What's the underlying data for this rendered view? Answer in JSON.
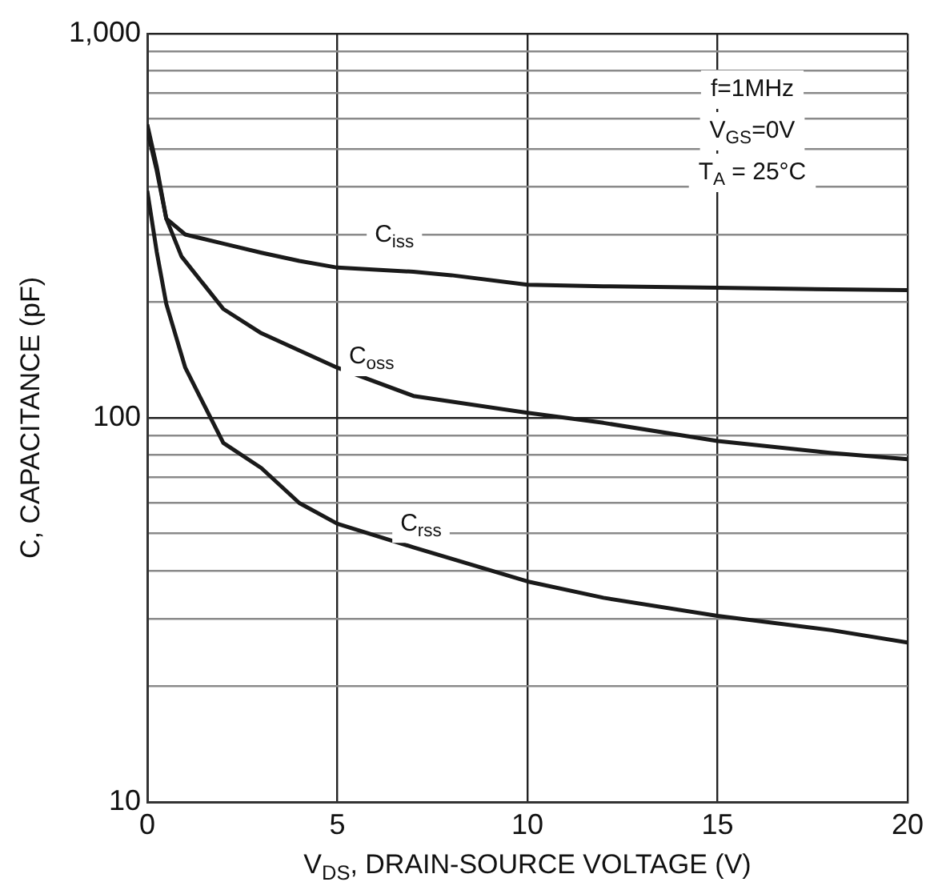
{
  "chart_data": {
    "type": "line",
    "xlabel": "V$_{DS}$, DRAIN-SOURCE VOLTAGE (V)",
    "ylabel": "C, CAPACITANCE (pF)",
    "log": "y",
    "grid": true,
    "xlim": [
      0,
      20
    ],
    "xticks": [
      0,
      5,
      10,
      15,
      20
    ],
    "ylim": [
      10,
      1000
    ],
    "yticks": [
      10,
      {
        "value": 20,
        "label": null
      },
      {
        "value": 30,
        "label": null
      },
      {
        "value": 40,
        "label": null
      },
      {
        "value": 50,
        "label": null
      },
      {
        "value": 60,
        "label": null
      },
      {
        "value": 70,
        "label": null
      },
      {
        "value": 80,
        "label": null
      },
      {
        "value": 90,
        "label": null
      },
      100,
      {
        "value": 200,
        "label": null
      },
      {
        "value": 300,
        "label": null
      },
      {
        "value": 400,
        "label": null
      },
      {
        "value": 500,
        "label": null
      },
      {
        "value": 600,
        "label": null
      },
      {
        "value": 700,
        "label": null
      },
      {
        "value": 800,
        "label": null
      },
      {
        "value": 900,
        "label": null
      },
      {
        "value": 1000,
        "label": "1,000"
      }
    ],
    "series": [
      {
        "color": "#1a1a1a",
        "x": [
          0,
          0.25,
          0.5,
          1,
          2,
          3,
          4,
          5,
          7,
          8,
          10,
          12,
          15,
          18,
          20
        ],
        "values": [
          580,
          450,
          330,
          300,
          284,
          269,
          256,
          246,
          240,
          235,
          222,
          220,
          218,
          216,
          215
        ]
      },
      {
        "color": "#1a1a1a",
        "x": [
          0,
          0.25,
          0.5,
          0.9,
          2,
          3,
          5,
          7,
          10,
          12,
          15,
          18,
          20
        ],
        "values": [
          560,
          440,
          330,
          263,
          192,
          166,
          135,
          114,
          103,
          97,
          87,
          81,
          78
        ]
      },
      {
        "color": "#1a1a1a",
        "x": [
          0,
          0.25,
          0.5,
          1,
          2,
          3,
          4,
          5,
          7,
          10,
          12,
          15,
          18,
          20
        ],
        "values": [
          390,
          270,
          198,
          135,
          86,
          74,
          60,
          53,
          46,
          37.5,
          34,
          30.5,
          28,
          26
        ]
      }
    ],
    "annotations": [
      {
        "text": "C$_{iss}$",
        "x": 6.5,
        "y": 299
      },
      {
        "text": "C$_{oss}$",
        "x": 5.9,
        "y": 144
      },
      {
        "text": "C$_{rss}$",
        "x": 7.2,
        "y": 53
      },
      "f=1MHz",
      "V$_{GS}$=0V",
      "T$_{A}$ = 25°C"
    ]
  }
}
